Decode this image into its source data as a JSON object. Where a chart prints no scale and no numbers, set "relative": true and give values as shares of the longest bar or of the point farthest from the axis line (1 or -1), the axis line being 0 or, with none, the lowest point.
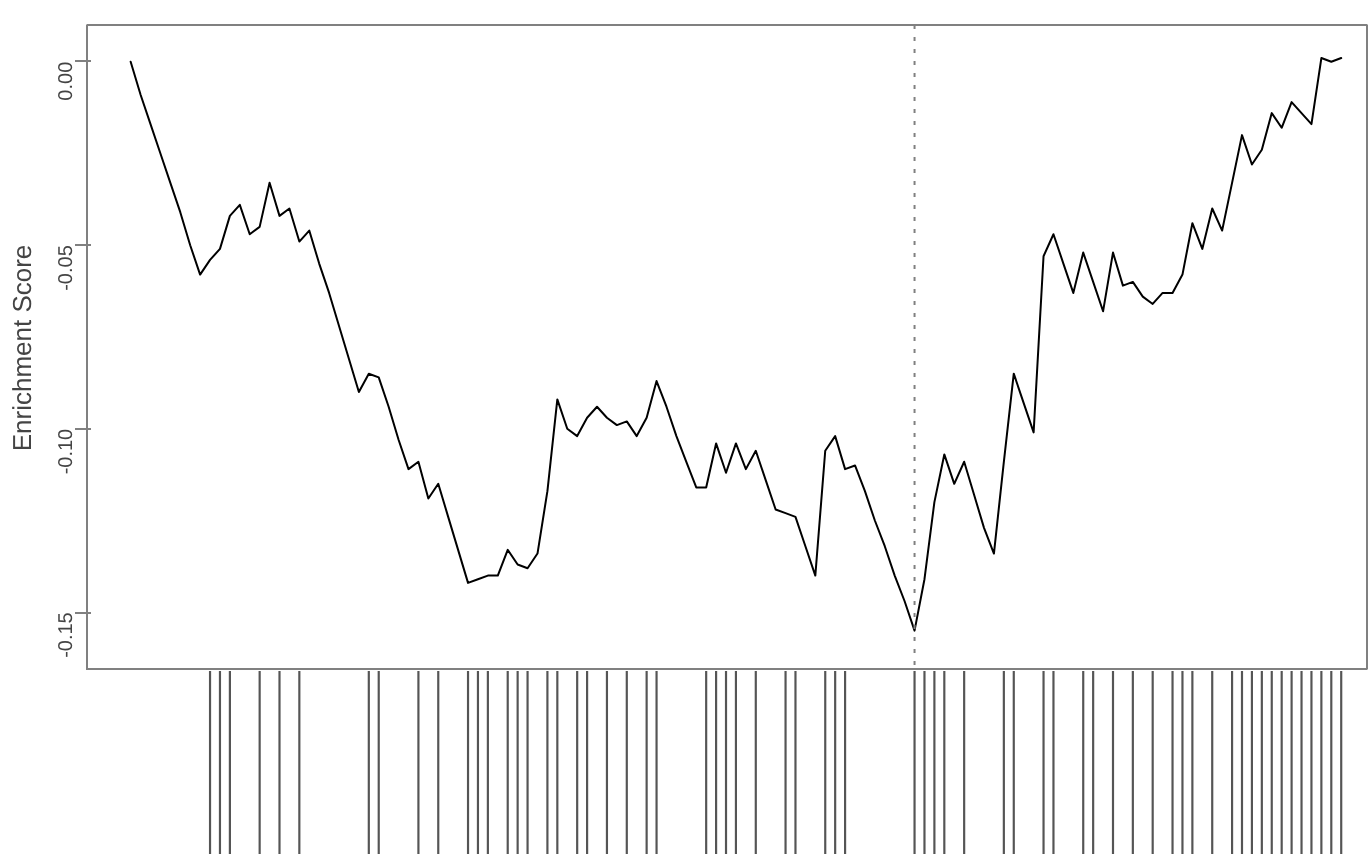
{
  "chart_data": [
    {
      "type": "line",
      "ylabel": "Enrichment Score",
      "categories": [
        null,
        null,
        null,
        null,
        null,
        null,
        null,
        null,
        null,
        null,
        null,
        null,
        null,
        null,
        null,
        null,
        null,
        null,
        null,
        null,
        null,
        null,
        null,
        null,
        null,
        null,
        null,
        null,
        null,
        null,
        null,
        null,
        null,
        null,
        null,
        null,
        null,
        null,
        null,
        null,
        null,
        null,
        null,
        null,
        null,
        null,
        null,
        null,
        null,
        null,
        null,
        null,
        null,
        null,
        null,
        null,
        null,
        null,
        null,
        null,
        null,
        null,
        null,
        null,
        null,
        null,
        null,
        null,
        null,
        null,
        null,
        null,
        null,
        null,
        null,
        null,
        null,
        null,
        null,
        null,
        null,
        null,
        null,
        null,
        null,
        null,
        null,
        null,
        null,
        null,
        null,
        null,
        null,
        null,
        null,
        null,
        null,
        null,
        null,
        null,
        null,
        null,
        null,
        null,
        null,
        null,
        null,
        null,
        null,
        null,
        null,
        null,
        null,
        null,
        null,
        null,
        null,
        null,
        null,
        null,
        null,
        null,
        null
      ],
      "series": [
        {
          "color": "#000000",
          "values": [
            0.0,
            -0.009,
            -0.017,
            -0.025,
            -0.033,
            -0.041,
            -0.05,
            -0.058,
            -0.054,
            -0.051,
            -0.042,
            -0.039,
            -0.047,
            -0.045,
            -0.033,
            -0.042,
            -0.04,
            -0.049,
            -0.046,
            -0.055,
            -0.063,
            -0.072,
            -0.081,
            -0.09,
            -0.085,
            -0.086,
            -0.094,
            -0.103,
            -0.111,
            -0.109,
            -0.119,
            -0.115,
            -0.124,
            -0.133,
            -0.142,
            -0.141,
            -0.14,
            -0.14,
            -0.133,
            -0.137,
            -0.138,
            -0.134,
            -0.117,
            -0.092,
            -0.1,
            -0.102,
            -0.097,
            -0.094,
            -0.097,
            -0.099,
            -0.098,
            -0.102,
            -0.097,
            -0.087,
            -0.094,
            -0.102,
            -0.109,
            -0.116,
            -0.116,
            -0.104,
            -0.112,
            -0.104,
            -0.111,
            -0.106,
            -0.114,
            -0.122,
            -0.123,
            -0.124,
            -0.132,
            -0.14,
            -0.106,
            -0.102,
            -0.111,
            -0.11,
            -0.117,
            -0.125,
            -0.132,
            -0.14,
            -0.147,
            -0.155,
            -0.141,
            -0.12,
            -0.107,
            -0.115,
            -0.109,
            -0.118,
            -0.127,
            -0.134,
            -0.109,
            -0.085,
            -0.093,
            -0.101,
            -0.053,
            -0.047,
            -0.055,
            -0.063,
            -0.052,
            -0.06,
            -0.068,
            -0.052,
            -0.061,
            -0.06,
            -0.064,
            -0.066,
            -0.063,
            -0.063,
            -0.058,
            -0.044,
            -0.051,
            -0.04,
            -0.046,
            -0.033,
            -0.02,
            -0.028,
            -0.024,
            -0.014,
            -0.018,
            -0.011,
            -0.014,
            -0.017,
            0.001,
            0.0,
            0.001
          ]
        }
      ],
      "ylim": [
        -0.166,
        0.01
      ],
      "yticks": [
        {
          "value": 0,
          "label": "0.00"
        },
        {
          "value": -0.05,
          "label": "-0.05"
        },
        {
          "value": -0.1,
          "label": "-0.10"
        },
        {
          "value": -0.15,
          "label": "-0.15"
        }
      ],
      "tick_labels": "y",
      "grid": false
    },
    {
      "type": "bar",
      "relative": true,
      "tick_labels": false,
      "categories": [
        null,
        null,
        null,
        null,
        null,
        null,
        null,
        null,
        null,
        null,
        null,
        null,
        null,
        null,
        null,
        null,
        null,
        null,
        null,
        null,
        null,
        null,
        null,
        null,
        null,
        null,
        null,
        null,
        null,
        null,
        null,
        null,
        null,
        null,
        null,
        null,
        null,
        null,
        null,
        null,
        null,
        null,
        null,
        null,
        null,
        null,
        null,
        null,
        null,
        null,
        null,
        null,
        null,
        null,
        null,
        null,
        null,
        null,
        null,
        null,
        null,
        null,
        null,
        null,
        null,
        null,
        null,
        null,
        null,
        null,
        null,
        null,
        null,
        null,
        null,
        null,
        null,
        null,
        null,
        null,
        null,
        null,
        null,
        null,
        null,
        null,
        null,
        null,
        null,
        null,
        null,
        null,
        null,
        null,
        null,
        null,
        null,
        null,
        null,
        null,
        null,
        null,
        null,
        null,
        null,
        null,
        null,
        null,
        null,
        null,
        null,
        null,
        null,
        null,
        null,
        null,
        null,
        null,
        null,
        null,
        null,
        null,
        null
      ],
      "series": [
        {
          "color": "#555555",
          "values": [
            null,
            null,
            null,
            null,
            null,
            null,
            null,
            null,
            1,
            1,
            1,
            null,
            null,
            1,
            null,
            1,
            null,
            1,
            null,
            null,
            null,
            null,
            null,
            null,
            1,
            1,
            null,
            null,
            null,
            1,
            null,
            1,
            null,
            null,
            1,
            1,
            1,
            null,
            1,
            1,
            1,
            null,
            1,
            1,
            null,
            1,
            1,
            null,
            1,
            null,
            1,
            null,
            1,
            1,
            null,
            null,
            null,
            null,
            1,
            1,
            1,
            1,
            null,
            1,
            null,
            null,
            1,
            1,
            null,
            null,
            1,
            1,
            1,
            null,
            null,
            null,
            null,
            null,
            null,
            1,
            1,
            1,
            1,
            null,
            1,
            null,
            null,
            null,
            1,
            1,
            null,
            null,
            1,
            1,
            null,
            null,
            1,
            1,
            null,
            1,
            null,
            1,
            null,
            1,
            null,
            1,
            1,
            1,
            null,
            1,
            null,
            1,
            1,
            1,
            1,
            1,
            1,
            1,
            1,
            1,
            1,
            1,
            1
          ]
        }
      ]
    }
  ]
}
